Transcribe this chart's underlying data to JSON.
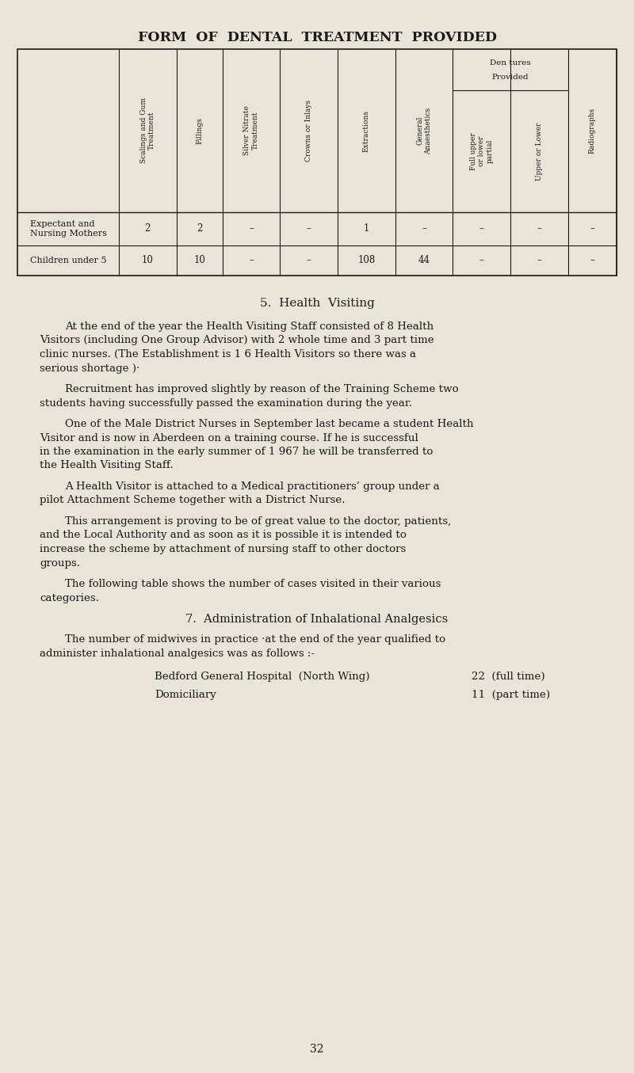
{
  "bg_color": "#e8e4d8",
  "text_color": "#1a1a1a",
  "page_title": "FORM  OF  DENTAL  TREATMENT  PROVIDED",
  "table": {
    "col_headers_short": [
      "Scalings and Gum\nTreatment",
      "Fillings",
      "Silver Nitrate\nTreatment",
      "Crowns or Inlays",
      "Extractions",
      "General\nAnaesthetics",
      "Full upper\nor lower\npartial",
      "Upper or Lower",
      "Radiographs"
    ],
    "dentures_header_line1": "Den tures",
    "dentures_header_line2": "Provided",
    "rows": [
      {
        "label": "Expectant and\nNursing Mothers",
        "values": [
          "2",
          "2",
          "–",
          "–",
          "1",
          "–",
          "–",
          "–",
          "–"
        ]
      },
      {
        "label": "Children under 5",
        "values": [
          "10",
          "10",
          "–",
          "–",
          "108",
          "44",
          "–",
          "–",
          "–"
        ]
      }
    ]
  },
  "section5_title": "5.  Health  Visiting",
  "section5_paragraphs": [
    "At the end of the year the Health Visiting Staff consisted of 8 Health Visitors (including One Group Advisor) with 2 whole time and 3 part time clinic nurses.  (The Establishment is 1 6 Health Visitors  so there was a serious shortage )·",
    "Recruitment has improved slightly by reason of the Training Scheme  two students  having  successfully  passed  the  examination during the year.",
    "One of the Male District Nurses in September last became a student Health Visitor and is now in Aberdeen on a training course. If  he  is  successful  in  the  examination  in  the  early  summer  of 1 967 he will be transferred to the Health Visiting Staff.",
    "A  Health  Visitor  is  attached   to  a  Medical  practitioners’ group  under  a  pilot  Attachment  Scheme  together  with  a  District Nurse.",
    "This  arrangement  is  proving  to  be  of  great  value  to  the doctor,  patients,  and  the  Local  Authority  and  as  soon  as  it  is possible  it  is  intended  to  increase  the  scheme  by  attachment  of nursing staff to other doctors groups.",
    "The  following  table  shows  the  number  of  cases  visited  in their various categories."
  ],
  "section7_title": "7.  Administration of Inhalational Analgesics",
  "section7_intro": "The  number  of  midwives  in  practice ·at  the  end  of  the year  qualified  to  administer  inhalational  analgesics  was  as follows :-",
  "section7_items": [
    {
      "label": "Bedford General Hospital  (North Wing)",
      "value": "22  (full time)"
    },
    {
      "label": "Domiciliary",
      "value": "11  (part time)"
    }
  ],
  "page_number": "32"
}
